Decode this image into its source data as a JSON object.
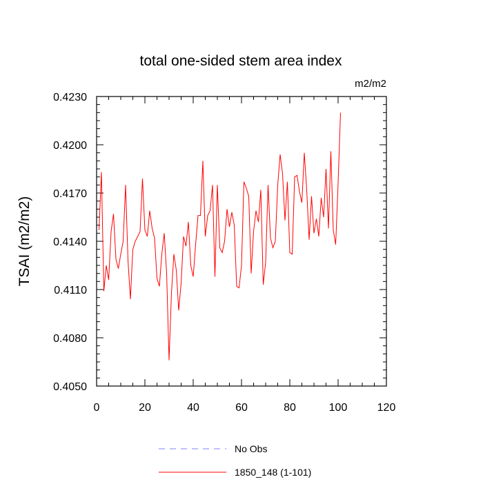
{
  "chart_data": {
    "type": "line",
    "title": "total one-sided stem area index",
    "units": "m2/m2",
    "xlabel": "",
    "ylabel": "TSAI  (m2/m2)",
    "xlim": [
      0,
      120
    ],
    "ylim": [
      0.405,
      0.423
    ],
    "x_ticks": [
      0,
      20,
      40,
      60,
      80,
      100,
      120
    ],
    "y_ticks": [
      0.405,
      0.408,
      0.411,
      0.414,
      0.417,
      0.42,
      0.423
    ],
    "x_tick_labels": [
      "0",
      "20",
      "40",
      "60",
      "80",
      "100",
      "120"
    ],
    "y_tick_labels": [
      "0.4050",
      "0.4080",
      "0.4110",
      "0.4140",
      "0.4170",
      "0.4200",
      "0.4230"
    ],
    "x_minor_step": 5,
    "y_minor_step": 0.0005,
    "grid": false,
    "series": [
      {
        "name": "1850_148 (1-101)",
        "color": "#ff0000",
        "style": "solid",
        "x": [
          1,
          2,
          3,
          4,
          5,
          6,
          7,
          8,
          9,
          10,
          11,
          12,
          13,
          14,
          15,
          16,
          17,
          18,
          19,
          20,
          21,
          22,
          23,
          24,
          25,
          26,
          27,
          28,
          29,
          30,
          31,
          32,
          33,
          34,
          35,
          36,
          37,
          38,
          39,
          40,
          41,
          42,
          43,
          44,
          45,
          46,
          47,
          48,
          49,
          50,
          51,
          52,
          53,
          54,
          55,
          56,
          57,
          58,
          59,
          60,
          61,
          62,
          63,
          64,
          65,
          66,
          67,
          68,
          69,
          70,
          71,
          72,
          73,
          74,
          75,
          76,
          77,
          78,
          79,
          80,
          81,
          82,
          83,
          84,
          85,
          86,
          87,
          88,
          89,
          90,
          91,
          92,
          93,
          94,
          95,
          96,
          97,
          98,
          99,
          100,
          101
        ],
        "values": [
          0.4147,
          0.4183,
          0.4109,
          0.4125,
          0.4116,
          0.4146,
          0.4157,
          0.4129,
          0.4123,
          0.4132,
          0.414,
          0.4175,
          0.4128,
          0.4104,
          0.4135,
          0.414,
          0.4143,
          0.4146,
          0.4179,
          0.4147,
          0.4143,
          0.4159,
          0.4148,
          0.4142,
          0.4117,
          0.4112,
          0.4132,
          0.4145,
          0.412,
          0.4066,
          0.4108,
          0.4132,
          0.4122,
          0.4097,
          0.4114,
          0.4143,
          0.4137,
          0.4152,
          0.4125,
          0.4118,
          0.4138,
          0.4156,
          0.4156,
          0.419,
          0.4143,
          0.4156,
          0.4159,
          0.4175,
          0.4118,
          0.4175,
          0.4136,
          0.4133,
          0.414,
          0.416,
          0.4149,
          0.4158,
          0.415,
          0.4112,
          0.4111,
          0.4125,
          0.4177,
          0.4173,
          0.4168,
          0.412,
          0.4146,
          0.4159,
          0.4152,
          0.4172,
          0.4113,
          0.4127,
          0.4175,
          0.4142,
          0.4136,
          0.414,
          0.4175,
          0.4194,
          0.4182,
          0.4153,
          0.4177,
          0.4133,
          0.4132,
          0.418,
          0.4181,
          0.4171,
          0.4164,
          0.4195,
          0.4172,
          0.4141,
          0.4168,
          0.4145,
          0.4154,
          0.4143,
          0.4167,
          0.4155,
          0.4185,
          0.4148,
          0.4196,
          0.4147,
          0.4138,
          0.4176,
          0.422
        ]
      }
    ],
    "legend": [
      {
        "label": "No Obs",
        "color": "#8080ff",
        "style": "dashed"
      },
      {
        "label": "1850_148 (1-101)",
        "color": "#ff0000",
        "style": "solid"
      }
    ],
    "legend_position": "bottom-center"
  }
}
